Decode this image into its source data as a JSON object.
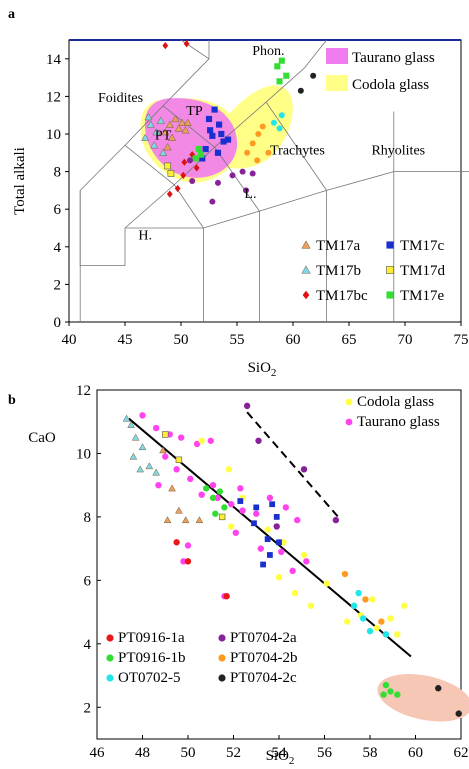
{
  "chart_data": [
    {
      "panel_label": "a",
      "type": "scatter",
      "xlabel": "SiO",
      "xlabel_sub": "2",
      "ylabel": "Total alkali",
      "xlim": [
        40,
        75
      ],
      "ylim": [
        0,
        15
      ],
      "x_ticks": [
        "40",
        "45",
        "50",
        "55",
        "60",
        "65",
        "70",
        "75"
      ],
      "y_ticks": [
        "0",
        "2",
        "4",
        "6",
        "8",
        "10",
        "12",
        "14"
      ],
      "field_labels": [
        "Phon.",
        "Foidites",
        "TP",
        "PT",
        "Trachytes",
        "Rhyolites",
        "L.",
        "H."
      ],
      "glass_fields": [
        {
          "name": "Taurano glass",
          "color": "#f07cf0"
        },
        {
          "name": "Codola glass",
          "color": "#ffff88"
        }
      ],
      "legend": [
        {
          "name": "TM17a",
          "marker": "triangle",
          "color": "#e8a060"
        },
        {
          "name": "TM17c",
          "marker": "square",
          "color": "#1a2fd0"
        },
        {
          "name": "TM17b",
          "marker": "triangle",
          "color": "#7fd8e8"
        },
        {
          "name": "TM17d",
          "marker": "square",
          "color": "#ffee33"
        },
        {
          "name": "TM17bc",
          "marker": "diamond",
          "color": "#e01010"
        },
        {
          "name": "TM17e",
          "marker": "square",
          "color": "#33dd33"
        }
      ],
      "series": [
        {
          "name": "TM17a",
          "points": [
            [
              48.6,
              10.1
            ],
            [
              49.0,
              10.5
            ],
            [
              49.5,
              10.8
            ],
            [
              50.1,
              10.6
            ],
            [
              50.4,
              10.2
            ],
            [
              49.2,
              9.8
            ],
            [
              48.8,
              9.3
            ],
            [
              50.6,
              10.6
            ],
            [
              49.8,
              10.3
            ]
          ]
        },
        {
          "name": "TM17b",
          "points": [
            [
              47.3,
              10.5
            ],
            [
              47.8,
              10.1
            ],
            [
              48.2,
              10.7
            ],
            [
              46.8,
              9.8
            ],
            [
              47.6,
              9.4
            ],
            [
              48.4,
              9.0
            ],
            [
              47.1,
              10.9
            ]
          ]
        },
        {
          "name": "TM17c",
          "points": [
            [
              52.5,
              10.8
            ],
            [
              53.0,
              11.3
            ],
            [
              53.4,
              10.5
            ],
            [
              52.8,
              9.9
            ],
            [
              53.8,
              9.6
            ],
            [
              52.2,
              9.2
            ],
            [
              53.3,
              9.0
            ],
            [
              54.2,
              9.7
            ],
            [
              51.9,
              8.7
            ],
            [
              52.6,
              10.2
            ],
            [
              53.6,
              10.0
            ]
          ]
        },
        {
          "name": "TM17d",
          "points": [
            [
              48.8,
              8.3
            ],
            [
              49.1,
              7.9
            ]
          ]
        },
        {
          "name": "TM17bc",
          "points": [
            [
              48.6,
              14.7
            ],
            [
              50.5,
              14.8
            ],
            [
              49.7,
              7.1
            ],
            [
              50.2,
              7.8
            ],
            [
              49.0,
              6.8
            ],
            [
              50.3,
              8.5
            ],
            [
              51.0,
              8.9
            ],
            [
              51.4,
              8.2
            ]
          ]
        },
        {
          "name": "TM17e",
          "points": [
            [
              51.3,
              8.7
            ],
            [
              51.8,
              8.9
            ],
            [
              58.6,
              13.6
            ],
            [
              59.0,
              13.9
            ],
            [
              59.4,
              13.1
            ],
            [
              58.8,
              12.8
            ],
            [
              51.6,
              9.2
            ]
          ]
        },
        {
          "name": "Codola (orange)",
          "color": "#ff9922",
          "points": [
            [
              56.4,
              9.5
            ],
            [
              56.9,
              10.0
            ],
            [
              57.8,
              9.0
            ],
            [
              55.9,
              9.0
            ],
            [
              56.8,
              8.6
            ],
            [
              57.3,
              10.4
            ]
          ]
        },
        {
          "name": "Codola (cyan)",
          "color": "#22e5e8",
          "points": [
            [
              58.3,
              10.6
            ],
            [
              59.0,
              11.0
            ],
            [
              58.8,
              10.3
            ]
          ]
        },
        {
          "name": "Purple",
          "color": "#882299",
          "points": [
            [
              50.8,
              8.6
            ],
            [
              51.0,
              7.5
            ],
            [
              53.3,
              7.4
            ],
            [
              52.8,
              6.4
            ],
            [
              55.5,
              8.0
            ],
            [
              56.4,
              7.9
            ],
            [
              55.8,
              7.0
            ],
            [
              54.6,
              7.8
            ]
          ]
        },
        {
          "name": "Black",
          "color": "#222222",
          "points": [
            [
              60.7,
              12.3
            ],
            [
              61.8,
              13.1
            ]
          ]
        }
      ]
    },
    {
      "panel_label": "b",
      "type": "scatter",
      "xlabel": "SiO",
      "xlabel_sub": "2",
      "ylabel": "CaO",
      "xlim": [
        46,
        62
      ],
      "ylim": [
        1,
        12
      ],
      "x_ticks": [
        "46",
        "48",
        "50",
        "52",
        "54",
        "56",
        "58",
        "60",
        "62"
      ],
      "y_ticks": [
        "2",
        "4",
        "6",
        "8",
        "10",
        "12"
      ],
      "legend_top": [
        {
          "name": "Codola glass",
          "color": "#ffff44"
        },
        {
          "name": "Taurano glass",
          "color": "#ff44ee"
        }
      ],
      "legend_bottom": [
        {
          "name": "PT0916-1a",
          "color": "#e81818"
        },
        {
          "name": "PT0704-2a",
          "color": "#882299"
        },
        {
          "name": "PT0916-1b",
          "color": "#33dd33"
        },
        {
          "name": "PT0704-2b",
          "color": "#ff9922"
        },
        {
          "name": "OT0702-5",
          "color": "#22e5e8"
        },
        {
          "name": "PT0704-2c",
          "color": "#222222"
        }
      ],
      "trend_line": [
        [
          47.4,
          11.1
        ],
        [
          59.8,
          3.6
        ]
      ],
      "dashed_line": [
        [
          52.6,
          11.3
        ],
        [
          56.6,
          8.0
        ]
      ],
      "series": [
        {
          "name": "Taurano glass",
          "points": [
            [
              48.0,
              11.2
            ],
            [
              48.6,
              10.8
            ],
            [
              49.2,
              10.6
            ],
            [
              49.7,
              10.5
            ],
            [
              50.4,
              10.3
            ],
            [
              51.0,
              10.4
            ],
            [
              49.0,
              9.9
            ],
            [
              49.5,
              9.5
            ],
            [
              50.1,
              9.2
            ],
            [
              48.7,
              9.0
            ],
            [
              50.6,
              8.7
            ],
            [
              51.3,
              8.6
            ],
            [
              51.9,
              8.4
            ],
            [
              52.4,
              8.2
            ],
            [
              53.0,
              8.1
            ],
            [
              53.6,
              8.6
            ],
            [
              54.3,
              8.3
            ],
            [
              54.8,
              7.9
            ],
            [
              52.1,
              7.5
            ],
            [
              53.2,
              7.0
            ],
            [
              54.1,
              6.9
            ],
            [
              54.6,
              6.3
            ],
            [
              55.2,
              6.6
            ],
            [
              51.6,
              5.5
            ],
            [
              50.0,
              7.1
            ],
            [
              49.8,
              6.6
            ],
            [
              52.3,
              8.9
            ],
            [
              51.1,
              9.0
            ]
          ]
        },
        {
          "name": "Codola glass",
          "points": [
            [
              50.6,
              10.4
            ],
            [
              51.8,
              9.5
            ],
            [
              52.4,
              8.6
            ],
            [
              51.9,
              7.7
            ],
            [
              53.5,
              7.6
            ],
            [
              54.2,
              7.2
            ],
            [
              55.1,
              6.8
            ],
            [
              54.0,
              6.1
            ],
            [
              54.7,
              5.6
            ],
            [
              55.4,
              5.2
            ],
            [
              56.1,
              5.9
            ],
            [
              57.0,
              4.7
            ],
            [
              57.6,
              4.9
            ],
            [
              58.3,
              4.5
            ],
            [
              58.9,
              4.8
            ],
            [
              59.2,
              4.3
            ],
            [
              59.5,
              5.2
            ],
            [
              58.1,
              5.4
            ]
          ]
        },
        {
          "name": "PT0916-1a",
          "points": [
            [
              49.5,
              7.2
            ],
            [
              50.0,
              6.6
            ],
            [
              51.7,
              5.5
            ]
          ]
        },
        {
          "name": "PT0916-1b",
          "points": [
            [
              50.8,
              8.9
            ],
            [
              51.1,
              8.6
            ],
            [
              51.4,
              8.8
            ],
            [
              51.6,
              8.3
            ],
            [
              51.2,
              8.1
            ],
            [
              58.7,
              2.7
            ],
            [
              58.9,
              2.5
            ],
            [
              59.2,
              2.4
            ],
            [
              58.6,
              2.4
            ]
          ]
        },
        {
          "name": "OT0702-5",
          "points": [
            [
              57.3,
              5.2
            ],
            [
              57.7,
              4.8
            ],
            [
              58.0,
              4.4
            ],
            [
              58.7,
              4.3
            ],
            [
              57.5,
              5.6
            ]
          ]
        },
        {
          "name": "PT0704-2a",
          "points": [
            [
              52.6,
              11.5
            ],
            [
              53.1,
              10.4
            ],
            [
              55.1,
              9.5
            ],
            [
              56.5,
              7.9
            ],
            [
              53.9,
              7.7
            ]
          ]
        },
        {
          "name": "PT0704-2b",
          "points": [
            [
              56.9,
              6.2
            ],
            [
              57.8,
              5.4
            ],
            [
              58.5,
              4.7
            ]
          ]
        },
        {
          "name": "PT0704-2c",
          "points": [
            [
              61.0,
              2.6
            ],
            [
              61.9,
              1.8
            ]
          ]
        },
        {
          "name": "TM17a (b)",
          "marker": "triangle",
          "color": "#e8a060",
          "points": [
            [
              49.3,
              8.9
            ],
            [
              49.6,
              8.2
            ],
            [
              49.9,
              7.9
            ],
            [
              49.1,
              7.9
            ],
            [
              50.5,
              7.9
            ],
            [
              48.9,
              10.1
            ]
          ]
        },
        {
          "name": "TM17b (b)",
          "marker": "triangle",
          "color": "#7fd8e8",
          "points": [
            [
              47.3,
              11.1
            ],
            [
              47.5,
              10.9
            ],
            [
              47.7,
              10.5
            ],
            [
              48.0,
              10.2
            ],
            [
              47.6,
              9.9
            ],
            [
              48.3,
              9.6
            ],
            [
              48.6,
              9.4
            ],
            [
              47.9,
              9.5
            ]
          ]
        },
        {
          "name": "TM17c (b)",
          "marker": "square",
          "color": "#1a2fd0",
          "points": [
            [
              52.3,
              8.5
            ],
            [
              53.0,
              8.3
            ],
            [
              53.7,
              8.4
            ],
            [
              52.9,
              7.8
            ],
            [
              53.5,
              7.3
            ],
            [
              53.6,
              6.8
            ],
            [
              53.3,
              6.5
            ],
            [
              54.0,
              7.2
            ],
            [
              53.9,
              8.0
            ]
          ]
        },
        {
          "name": "TM17d (b)",
          "marker": "square",
          "color": "#ffee33",
          "points": [
            [
              49.0,
              10.6
            ],
            [
              49.6,
              9.8
            ],
            [
              51.5,
              8.0
            ]
          ]
        }
      ]
    }
  ]
}
